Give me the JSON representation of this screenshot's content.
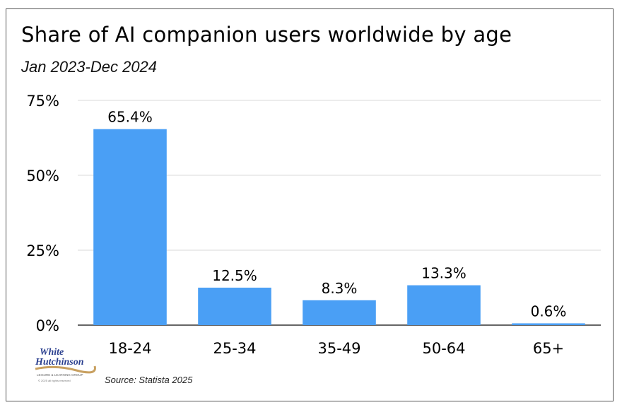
{
  "chart_data": {
    "type": "bar",
    "title": "Share of AI companion users worldwide by age",
    "subtitle": "Jan 2023-Dec 2024",
    "categories": [
      "18-24",
      "25-34",
      "35-49",
      "50-64",
      "65+"
    ],
    "values": [
      65.4,
      12.5,
      8.3,
      13.3,
      0.6
    ],
    "value_labels": [
      "65.4%",
      "12.5%",
      "8.3%",
      "13.3%",
      "0.6%"
    ],
    "yticks": [
      0,
      25,
      50,
      75
    ],
    "ytick_labels": [
      "0%",
      "25%",
      "50%",
      "75%"
    ],
    "ylim": [
      0,
      75
    ],
    "xlabel": "",
    "ylabel": "",
    "grid": true,
    "bar_color": "#4a9ff5"
  },
  "source": "Source: Statista 2025",
  "logo": {
    "line1": "White",
    "line2": "Hutchinson",
    "tagline": "LEISURE & LEARNING GROUP",
    "copyright": "© 2025 all rights reserved"
  }
}
